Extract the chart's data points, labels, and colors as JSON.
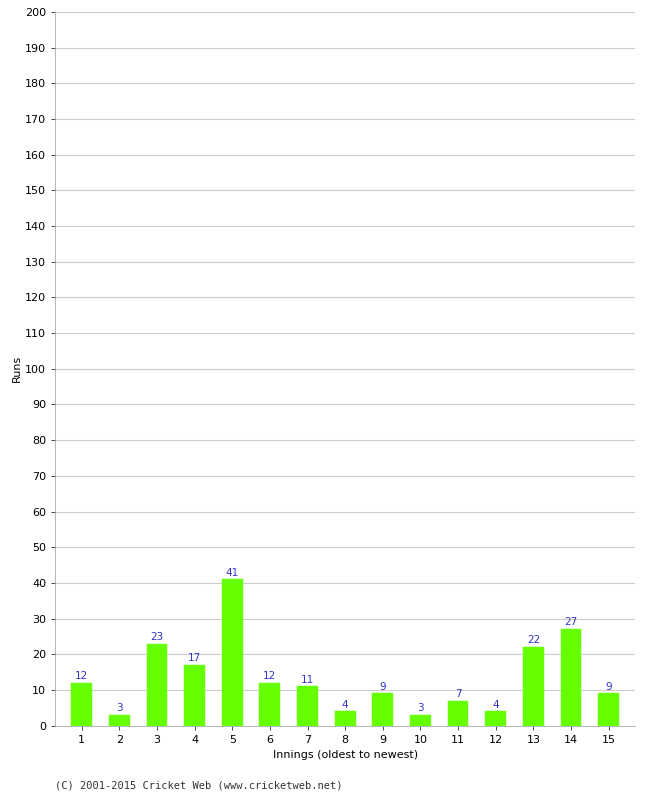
{
  "innings": [
    1,
    2,
    3,
    4,
    5,
    6,
    7,
    8,
    9,
    10,
    11,
    12,
    13,
    14,
    15
  ],
  "runs": [
    12,
    3,
    23,
    17,
    41,
    12,
    11,
    4,
    9,
    3,
    7,
    4,
    22,
    27,
    9
  ],
  "bar_color": "#66ff00",
  "bar_edge_color": "#66ff00",
  "label_color": "#3333cc",
  "xlabel": "Innings (oldest to newest)",
  "ylabel": "Runs",
  "ylim": [
    0,
    200
  ],
  "yticks": [
    0,
    10,
    20,
    30,
    40,
    50,
    60,
    70,
    80,
    90,
    100,
    110,
    120,
    130,
    140,
    150,
    160,
    170,
    180,
    190,
    200
  ],
  "background_color": "#ffffff",
  "grid_color": "#cccccc",
  "footer": "(C) 2001-2015 Cricket Web (www.cricketweb.net)",
  "label_fontsize": 7.5,
  "axis_label_fontsize": 8,
  "tick_fontsize": 8,
  "footer_fontsize": 7.5,
  "bar_width": 0.55
}
